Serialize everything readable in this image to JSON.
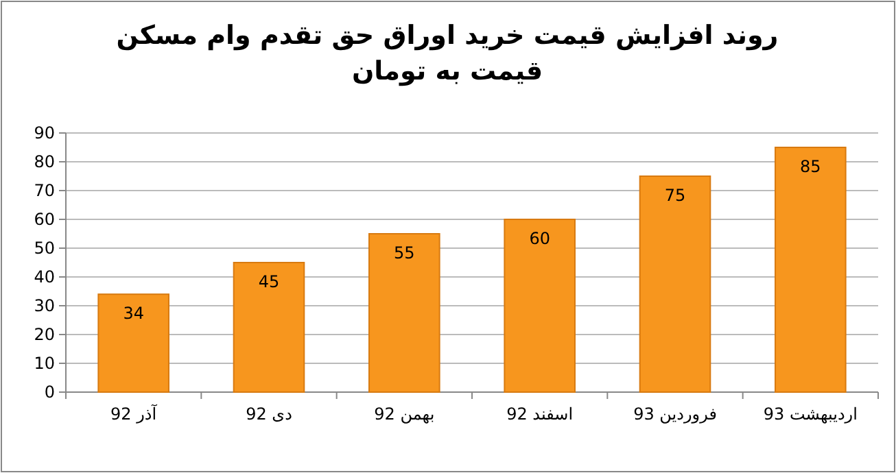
{
  "chart_data": {
    "type": "bar",
    "title": "روند افزایش قیمت خرید اوراق حق تقدم وام مسکن قیمت به تومان",
    "categories": [
      "آذر 92",
      "دی 92",
      "بهمن 92",
      "اسفند 92",
      "فروردین 93",
      "اردیبهشت 93"
    ],
    "values": [
      34,
      45,
      55,
      60,
      75,
      85
    ],
    "color": "#f7961e",
    "ylim": [
      0,
      90
    ],
    "yticks": [
      0,
      10,
      20,
      30,
      40,
      50,
      60,
      70,
      80,
      90
    ],
    "grid": "y",
    "data_labels": true
  }
}
